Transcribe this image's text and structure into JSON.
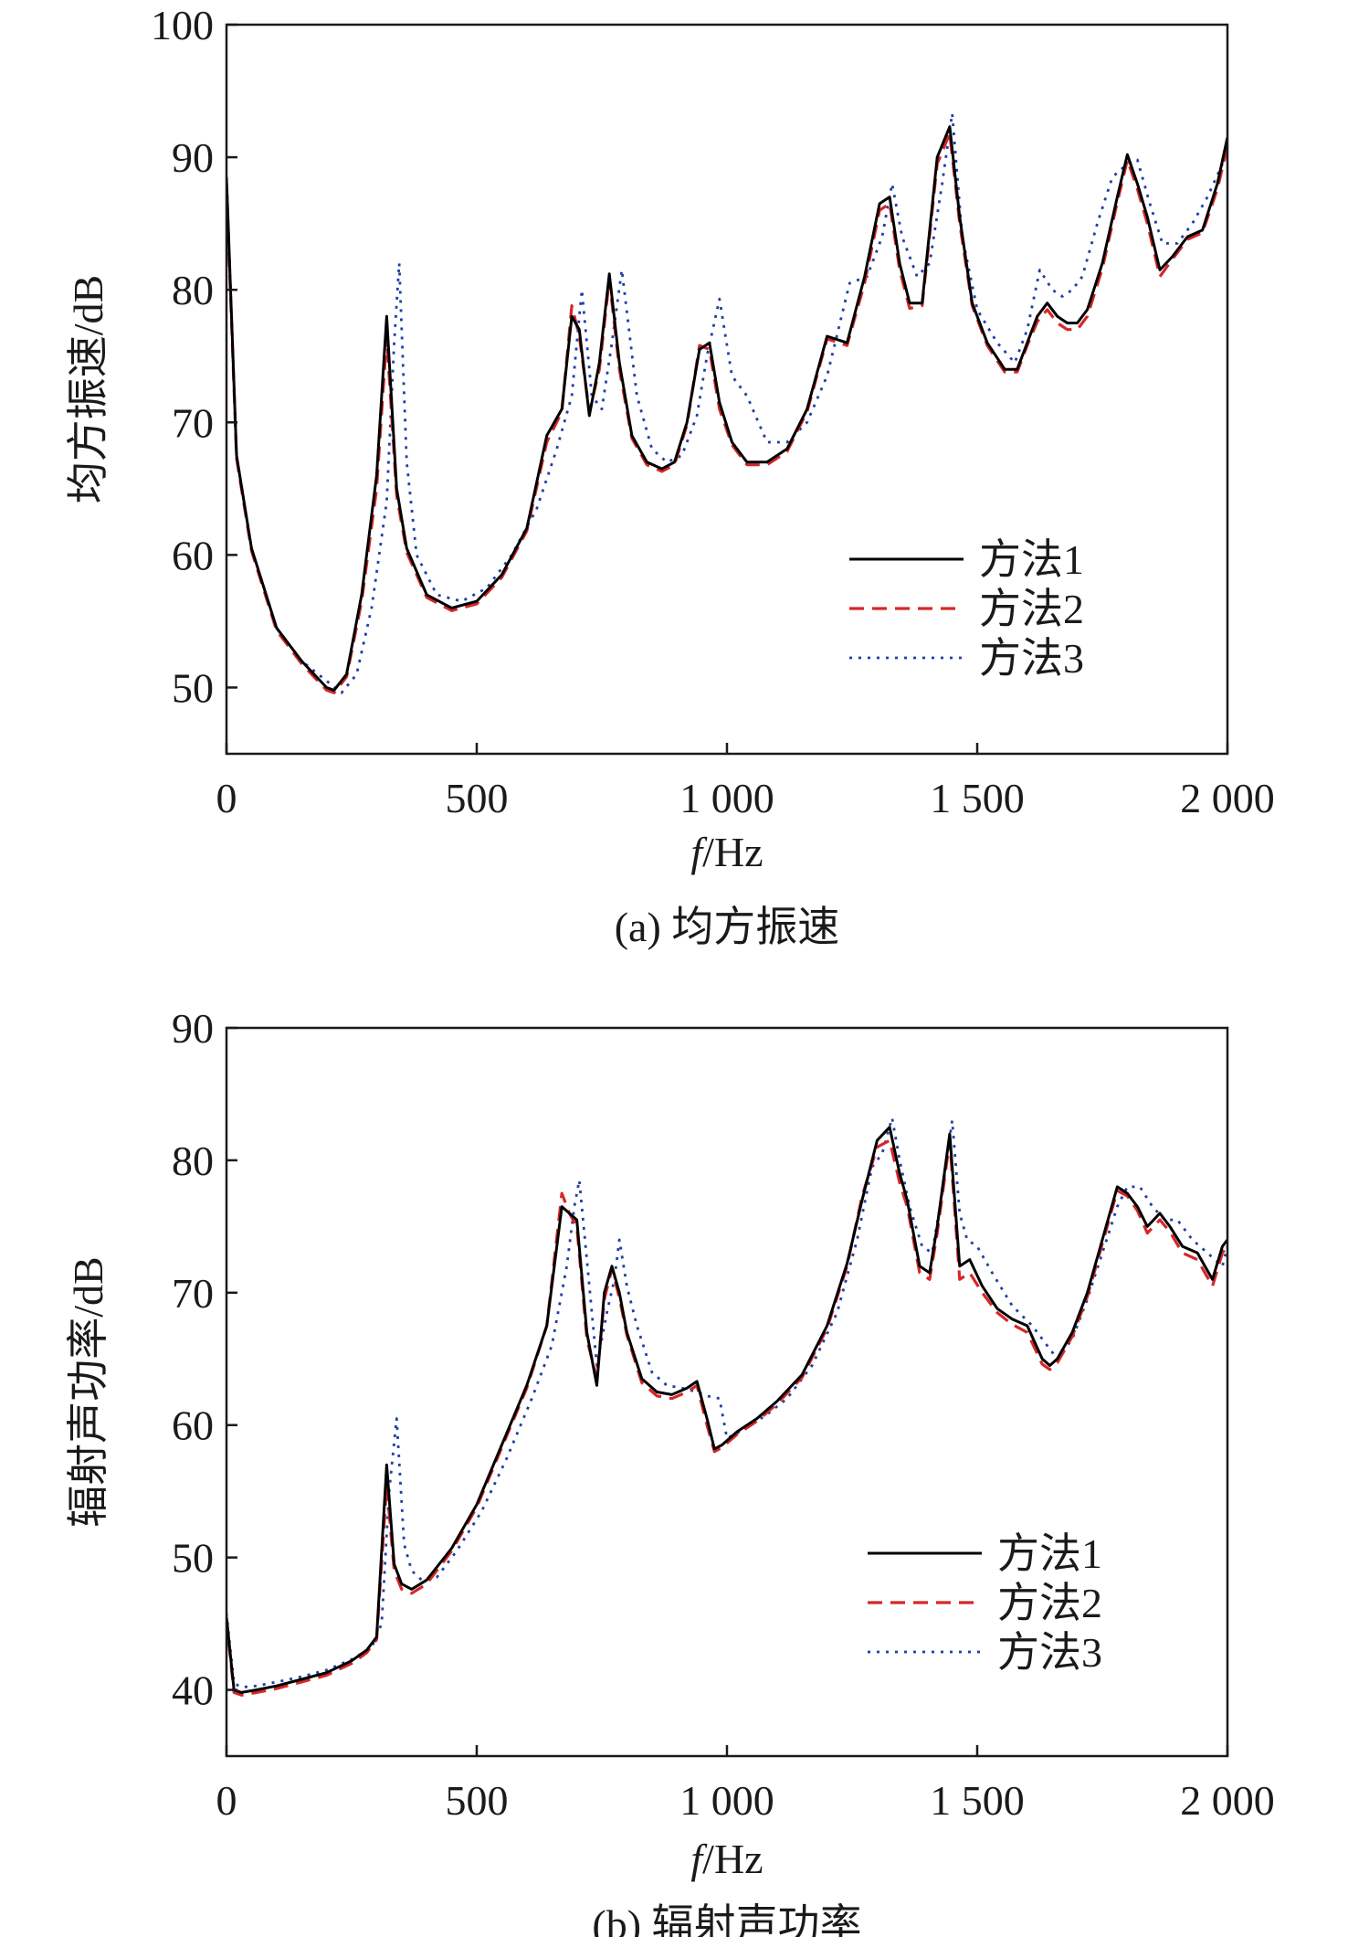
{
  "chart_data": [
    {
      "type": "line",
      "caption": "(a) 均方振速",
      "xlabel_italic": "f",
      "xlabel_rest": "/Hz",
      "ylabel": "均方振速/dB",
      "xlim": [
        0,
        2000
      ],
      "ylim": [
        45,
        100
      ],
      "xticks": [
        0,
        500,
        1000,
        1500,
        2000
      ],
      "xtick_labels": [
        "0",
        "500",
        "1 000",
        "1 500",
        "2 000"
      ],
      "yticks": [
        50,
        60,
        70,
        80,
        90,
        100
      ],
      "ytick_labels": [
        "50",
        "60",
        "70",
        "80",
        "90",
        "100"
      ],
      "legend_position": "lower-right",
      "series": [
        {
          "name": "方法1",
          "color": "#000000",
          "dash": "solid",
          "x": [
            0,
            20,
            50,
            100,
            150,
            200,
            215,
            240,
            270,
            300,
            320,
            340,
            360,
            400,
            450,
            500,
            550,
            600,
            640,
            670,
            690,
            705,
            725,
            745,
            765,
            785,
            810,
            840,
            870,
            895,
            920,
            945,
            965,
            985,
            1010,
            1040,
            1080,
            1120,
            1160,
            1200,
            1240,
            1275,
            1305,
            1325,
            1345,
            1365,
            1390,
            1420,
            1445,
            1465,
            1490,
            1520,
            1555,
            1580,
            1600,
            1620,
            1640,
            1660,
            1680,
            1700,
            1720,
            1750,
            1780,
            1800,
            1820,
            1840,
            1865,
            1890,
            1920,
            1950,
            1980,
            2000
          ],
          "y": [
            88.5,
            67.5,
            60.5,
            54.5,
            52,
            50,
            49.8,
            51,
            57,
            66,
            78,
            65,
            60.5,
            57,
            56,
            56.5,
            58.5,
            62,
            69,
            71,
            78,
            77,
            70.5,
            74.5,
            81.2,
            74.5,
            69,
            67,
            66.5,
            67,
            70,
            75.5,
            76,
            71.5,
            68.5,
            67,
            67,
            68,
            71,
            76.5,
            76,
            81,
            86.5,
            87,
            82,
            79,
            79,
            90,
            92.3,
            85.5,
            79,
            76,
            74,
            74,
            76,
            78,
            79,
            78,
            77.5,
            77.5,
            78.5,
            82,
            87,
            90.2,
            88,
            85.5,
            81.5,
            82.5,
            84,
            84.5,
            88,
            91.5
          ]
        },
        {
          "name": "方法2",
          "color": "#d62728",
          "dash": "dashed",
          "x": [
            0,
            20,
            50,
            100,
            150,
            200,
            215,
            240,
            270,
            300,
            320,
            340,
            360,
            400,
            450,
            500,
            550,
            600,
            640,
            670,
            690,
            705,
            725,
            745,
            765,
            785,
            810,
            840,
            870,
            895,
            920,
            945,
            965,
            985,
            1010,
            1040,
            1080,
            1120,
            1160,
            1200,
            1240,
            1275,
            1305,
            1325,
            1345,
            1365,
            1390,
            1420,
            1445,
            1465,
            1490,
            1520,
            1555,
            1580,
            1600,
            1620,
            1640,
            1660,
            1680,
            1700,
            1720,
            1750,
            1780,
            1800,
            1820,
            1840,
            1865,
            1890,
            1920,
            1950,
            1980,
            2000
          ],
          "y": [
            88,
            67.3,
            60.3,
            54.3,
            51.8,
            49.8,
            49.6,
            50.8,
            56.5,
            65,
            76.5,
            64.5,
            60.2,
            56.8,
            55.8,
            56.3,
            58.3,
            61.8,
            68.5,
            70.8,
            78.8,
            76.5,
            70.8,
            74,
            80.8,
            74,
            68.8,
            66.8,
            66.3,
            66.8,
            69.8,
            75.8,
            75.5,
            71,
            68.3,
            66.8,
            66.8,
            67.8,
            70.8,
            76.3,
            75.8,
            80.5,
            86,
            86.5,
            81.5,
            78.6,
            78.8,
            89.5,
            91.8,
            85,
            78.8,
            75.8,
            73.8,
            73.8,
            75.8,
            77.6,
            78.5,
            77.5,
            77,
            77,
            78,
            81.6,
            86.6,
            89.8,
            87.6,
            85,
            81,
            82.3,
            83.8,
            84.3,
            87.6,
            90.8
          ]
        },
        {
          "name": "方法3",
          "color": "#1f3fa8",
          "dash": "dotted",
          "x": [
            0,
            20,
            50,
            100,
            150,
            200,
            230,
            260,
            290,
            320,
            335,
            345,
            360,
            380,
            420,
            470,
            520,
            570,
            620,
            660,
            690,
            710,
            730,
            750,
            770,
            790,
            820,
            850,
            880,
            910,
            940,
            960,
            985,
            1010,
            1040,
            1080,
            1120,
            1160,
            1200,
            1245,
            1280,
            1310,
            1330,
            1350,
            1380,
            1405,
            1430,
            1450,
            1470,
            1500,
            1540,
            1575,
            1600,
            1625,
            1650,
            1670,
            1690,
            1710,
            1740,
            1770,
            1800,
            1820,
            1845,
            1870,
            1900,
            1930,
            1960,
            1990,
            2000
          ],
          "y": [
            88.5,
            67.5,
            60.5,
            54.5,
            52,
            50.5,
            49.6,
            51,
            56,
            64,
            76,
            82,
            67,
            60,
            57,
            56.5,
            57.5,
            60,
            63.5,
            68,
            72,
            80,
            72,
            71,
            76,
            81.5,
            72,
            68,
            67,
            67.5,
            70.5,
            75,
            79.3,
            73.5,
            72,
            68.5,
            68.5,
            70,
            73.5,
            80.5,
            81,
            84,
            88,
            84,
            81,
            82,
            88,
            93.3,
            84,
            78.5,
            76,
            74.5,
            77,
            81.5,
            80,
            79.5,
            80,
            81,
            85,
            88.5,
            89.5,
            89.8,
            86.5,
            83.5,
            83.5,
            85,
            87,
            89.5,
            91
          ]
        }
      ]
    },
    {
      "type": "line",
      "caption": "(b) 辐射声功率",
      "xlabel_italic": "f",
      "xlabel_rest": "/Hz",
      "ylabel": "辐射声功率/dB",
      "xlim": [
        0,
        2000
      ],
      "ylim": [
        35,
        90
      ],
      "xticks": [
        0,
        500,
        1000,
        1500,
        2000
      ],
      "xtick_labels": [
        "0",
        "500",
        "1 000",
        "1 500",
        "2 000"
      ],
      "yticks": [
        40,
        50,
        60,
        70,
        80,
        90
      ],
      "ytick_labels": [
        "40",
        "50",
        "60",
        "70",
        "80",
        "90"
      ],
      "legend_position": "lower-right",
      "series": [
        {
          "name": "方法1",
          "color": "#000000",
          "dash": "solid",
          "x": [
            0,
            15,
            30,
            60,
            100,
            150,
            200,
            250,
            280,
            300,
            320,
            335,
            350,
            370,
            400,
            450,
            500,
            550,
            600,
            640,
            670,
            685,
            700,
            720,
            740,
            755,
            770,
            785,
            800,
            830,
            860,
            890,
            920,
            940,
            960,
            975,
            990,
            1020,
            1060,
            1100,
            1150,
            1200,
            1240,
            1270,
            1300,
            1325,
            1345,
            1360,
            1385,
            1405,
            1420,
            1445,
            1465,
            1485,
            1510,
            1540,
            1570,
            1600,
            1630,
            1645,
            1660,
            1690,
            1720,
            1750,
            1780,
            1800,
            1820,
            1840,
            1865,
            1885,
            1910,
            1940,
            1970,
            1990,
            2000
          ],
          "y": [
            45.5,
            40,
            39.8,
            40,
            40.3,
            40.8,
            41.3,
            42.2,
            43,
            44,
            57,
            49.5,
            48,
            47.6,
            48.3,
            50.7,
            54,
            58.5,
            63,
            67.5,
            76.5,
            76,
            75.5,
            67,
            63,
            70,
            72,
            70,
            67,
            63.5,
            62.5,
            62.3,
            62.8,
            63.3,
            60.5,
            58.2,
            58.5,
            59.5,
            60.5,
            61.8,
            63.8,
            67.5,
            72.2,
            77,
            81.5,
            82.5,
            79,
            77,
            72,
            71.5,
            75,
            82,
            72,
            72.5,
            70.5,
            68.8,
            68,
            67.5,
            65,
            64.5,
            65,
            67,
            70,
            74,
            78,
            77.5,
            76.5,
            75,
            76,
            75,
            73.5,
            73,
            71,
            73.5,
            74
          ]
        },
        {
          "name": "方法2",
          "color": "#d62728",
          "dash": "dashed",
          "x": [
            0,
            15,
            30,
            60,
            100,
            150,
            200,
            250,
            280,
            300,
            320,
            335,
            350,
            370,
            400,
            450,
            500,
            550,
            600,
            640,
            670,
            685,
            700,
            720,
            740,
            755,
            770,
            785,
            800,
            830,
            860,
            890,
            920,
            940,
            960,
            975,
            990,
            1020,
            1060,
            1100,
            1150,
            1200,
            1240,
            1270,
            1300,
            1325,
            1345,
            1360,
            1385,
            1405,
            1420,
            1445,
            1465,
            1485,
            1510,
            1540,
            1570,
            1600,
            1630,
            1645,
            1660,
            1690,
            1720,
            1750,
            1780,
            1800,
            1820,
            1840,
            1865,
            1885,
            1910,
            1940,
            1970,
            1990,
            2000
          ],
          "y": [
            45.3,
            39.8,
            39.6,
            39.8,
            40.1,
            40.6,
            41.1,
            42,
            42.8,
            43.8,
            55.5,
            49,
            47.6,
            47.3,
            48,
            50.5,
            53.8,
            58.3,
            62.8,
            67.5,
            77.5,
            76,
            75,
            66.5,
            63.5,
            69.5,
            71.8,
            69.6,
            66.8,
            63.2,
            62.2,
            62,
            62.5,
            63,
            60,
            58,
            58.3,
            59.3,
            60.3,
            61.6,
            63.6,
            67.3,
            72,
            77.3,
            81,
            81.5,
            78.3,
            76.5,
            71.5,
            71,
            74.5,
            81.5,
            71,
            71.5,
            70,
            68.5,
            67.6,
            67,
            64.6,
            64.2,
            64.7,
            66.7,
            69.7,
            73.7,
            77.7,
            77.3,
            76.2,
            74.5,
            75.5,
            74.6,
            73,
            72.5,
            70.5,
            73,
            73.5
          ]
        },
        {
          "name": "方法3",
          "color": "#1f3fa8",
          "dash": "dotted",
          "x": [
            0,
            15,
            30,
            60,
            100,
            150,
            200,
            250,
            290,
            310,
            325,
            340,
            355,
            370,
            390,
            420,
            460,
            510,
            560,
            610,
            650,
            680,
            695,
            705,
            720,
            740,
            760,
            775,
            785,
            800,
            820,
            850,
            880,
            910,
            940,
            960,
            985,
            1000,
            1040,
            1080,
            1120,
            1170,
            1220,
            1260,
            1290,
            1310,
            1330,
            1345,
            1365,
            1390,
            1410,
            1430,
            1450,
            1465,
            1480,
            1500,
            1530,
            1570,
            1610,
            1640,
            1660,
            1690,
            1720,
            1750,
            1780,
            1800,
            1825,
            1850,
            1875,
            1900,
            1930,
            1960,
            1990,
            2000
          ],
          "y": [
            45.8,
            40.5,
            40.2,
            40.3,
            40.6,
            41,
            41.5,
            42.3,
            43.2,
            45,
            55,
            60.5,
            51,
            49,
            48.3,
            48.5,
            50.5,
            53.5,
            57.5,
            62,
            66,
            72,
            76.5,
            78.5,
            72.5,
            64.5,
            68.5,
            71,
            74,
            70.5,
            67.5,
            64,
            63,
            62.8,
            62.5,
            62.2,
            62,
            59,
            59.8,
            60.8,
            62,
            64.5,
            68.5,
            74,
            79.5,
            80.5,
            83.2,
            80,
            76.5,
            73.5,
            73,
            77.5,
            83,
            76,
            74,
            73.5,
            71.5,
            69,
            67.5,
            66,
            65,
            66.5,
            69.5,
            73,
            76.5,
            78,
            78,
            76.5,
            75.5,
            75.5,
            74,
            73,
            72,
            73.5
          ]
        }
      ]
    }
  ]
}
